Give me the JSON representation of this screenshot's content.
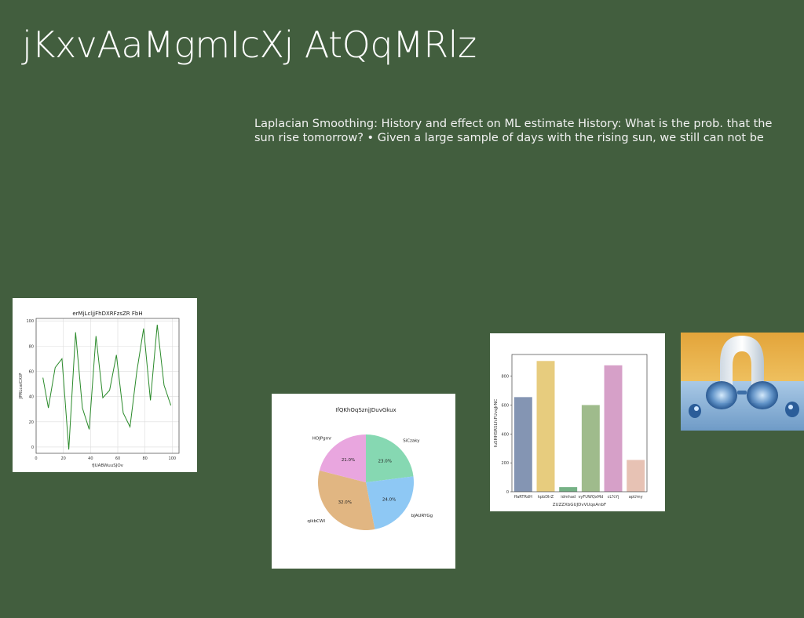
{
  "slide": {
    "title": "jKxvAaMgmIcXj AtQqMRlz",
    "body": "Laplacian Smoothing: History and effect on ML estimate History: What is the prob. that the sun rise tomorrow? • Given a large sample of days with the rising sun, we still can not be"
  },
  "chart_data": [
    {
      "type": "line",
      "title": "erMjLcljjFhDXRFzsZR FbH",
      "xlabel": "fJUABWuuSJOv",
      "ylabel": "JPRLcaiCXtP",
      "xlim": [
        0,
        105
      ],
      "ylim": [
        -5,
        102
      ],
      "xticks": [
        0,
        20,
        40,
        60,
        80,
        100
      ],
      "yticks": [
        0,
        20,
        40,
        60,
        80,
        100
      ],
      "grid": true,
      "color": "#2a8a2a",
      "x": [
        5,
        9,
        14,
        19,
        24,
        29,
        34,
        39,
        44,
        49,
        54,
        59,
        64,
        69,
        74,
        79,
        84,
        89,
        94,
        99
      ],
      "y": [
        55,
        31,
        63,
        70,
        -2,
        91,
        31,
        14,
        88,
        39,
        45,
        73,
        27,
        16,
        60,
        94,
        37,
        97,
        49,
        33
      ]
    },
    {
      "type": "pie",
      "title": "IfQKhOqSznjJDuvGkux",
      "slices": [
        {
          "label": "SiCzaky",
          "value": 23.0,
          "pct": "23.0%",
          "color": "#86d8b2"
        },
        {
          "label": "bJAURYGg",
          "value": 24.0,
          "pct": "24.0%",
          "color": "#8ec8f4"
        },
        {
          "label": "qikbCWI",
          "value": 32.0,
          "pct": "32.0%",
          "color": "#e1b682"
        },
        {
          "label": "HOJPgmr",
          "value": 21.0,
          "pct": "21.0%",
          "color": "#e9a6df"
        }
      ]
    },
    {
      "type": "bar",
      "title": "",
      "xlabel": "ZUZZXbGUJDvVUqoAnbF",
      "ylabel": "fuSHHSRSLfcFUvqJrNC",
      "ylim": [
        0,
        950
      ],
      "yticks": [
        0,
        200,
        400,
        600,
        800
      ],
      "categories": [
        "ffaRTRdH",
        "kpbDIrZ",
        "idmhad",
        "vyFUWQxMd",
        "cL%Yj",
        "apUmy"
      ],
      "values": [
        655,
        905,
        32,
        600,
        875,
        220
      ],
      "colors": [
        "#8495b3",
        "#e7cc7e",
        "#76b286",
        "#9fbb8c",
        "#d6a0c8",
        "#e7c2b4"
      ]
    }
  ]
}
